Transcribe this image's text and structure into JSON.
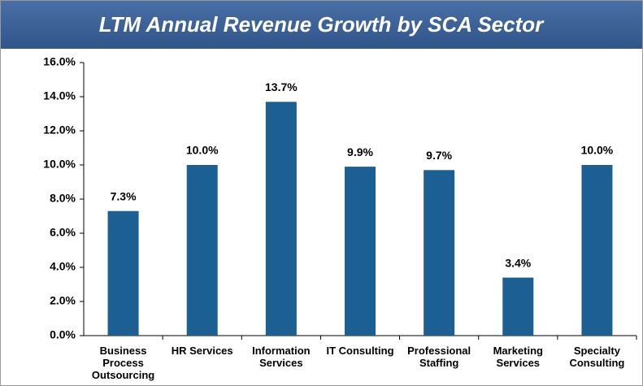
{
  "chart_data": {
    "type": "bar",
    "title": "LTM Annual Revenue Growth by SCA Sector",
    "categories": [
      "Business Process Outsourcing",
      "HR Services",
      "Information Services",
      "IT Consulting",
      "Professional Staffing",
      "Marketing Services",
      "Specialty Consulting"
    ],
    "values": [
      7.3,
      10.0,
      13.7,
      9.9,
      9.7,
      3.4,
      10.0
    ],
    "value_labels": [
      "7.3%",
      "10.0%",
      "13.7%",
      "9.9%",
      "9.7%",
      "3.4%",
      "10.0%"
    ],
    "color": "#1c5f93",
    "ylim": [
      0,
      16
    ],
    "yticks": [
      {
        "value": 0,
        "label": "0.0%"
      },
      {
        "value": 2,
        "label": "2.0%"
      },
      {
        "value": 4,
        "label": "4.0%"
      },
      {
        "value": 6,
        "label": "6.0%"
      },
      {
        "value": 8,
        "label": "8.0%"
      },
      {
        "value": 10,
        "label": "10.0%"
      },
      {
        "value": 12,
        "label": "12.0%"
      },
      {
        "value": 14,
        "label": "14.0%"
      },
      {
        "value": 16,
        "label": "16.0%"
      }
    ],
    "grid": false
  }
}
